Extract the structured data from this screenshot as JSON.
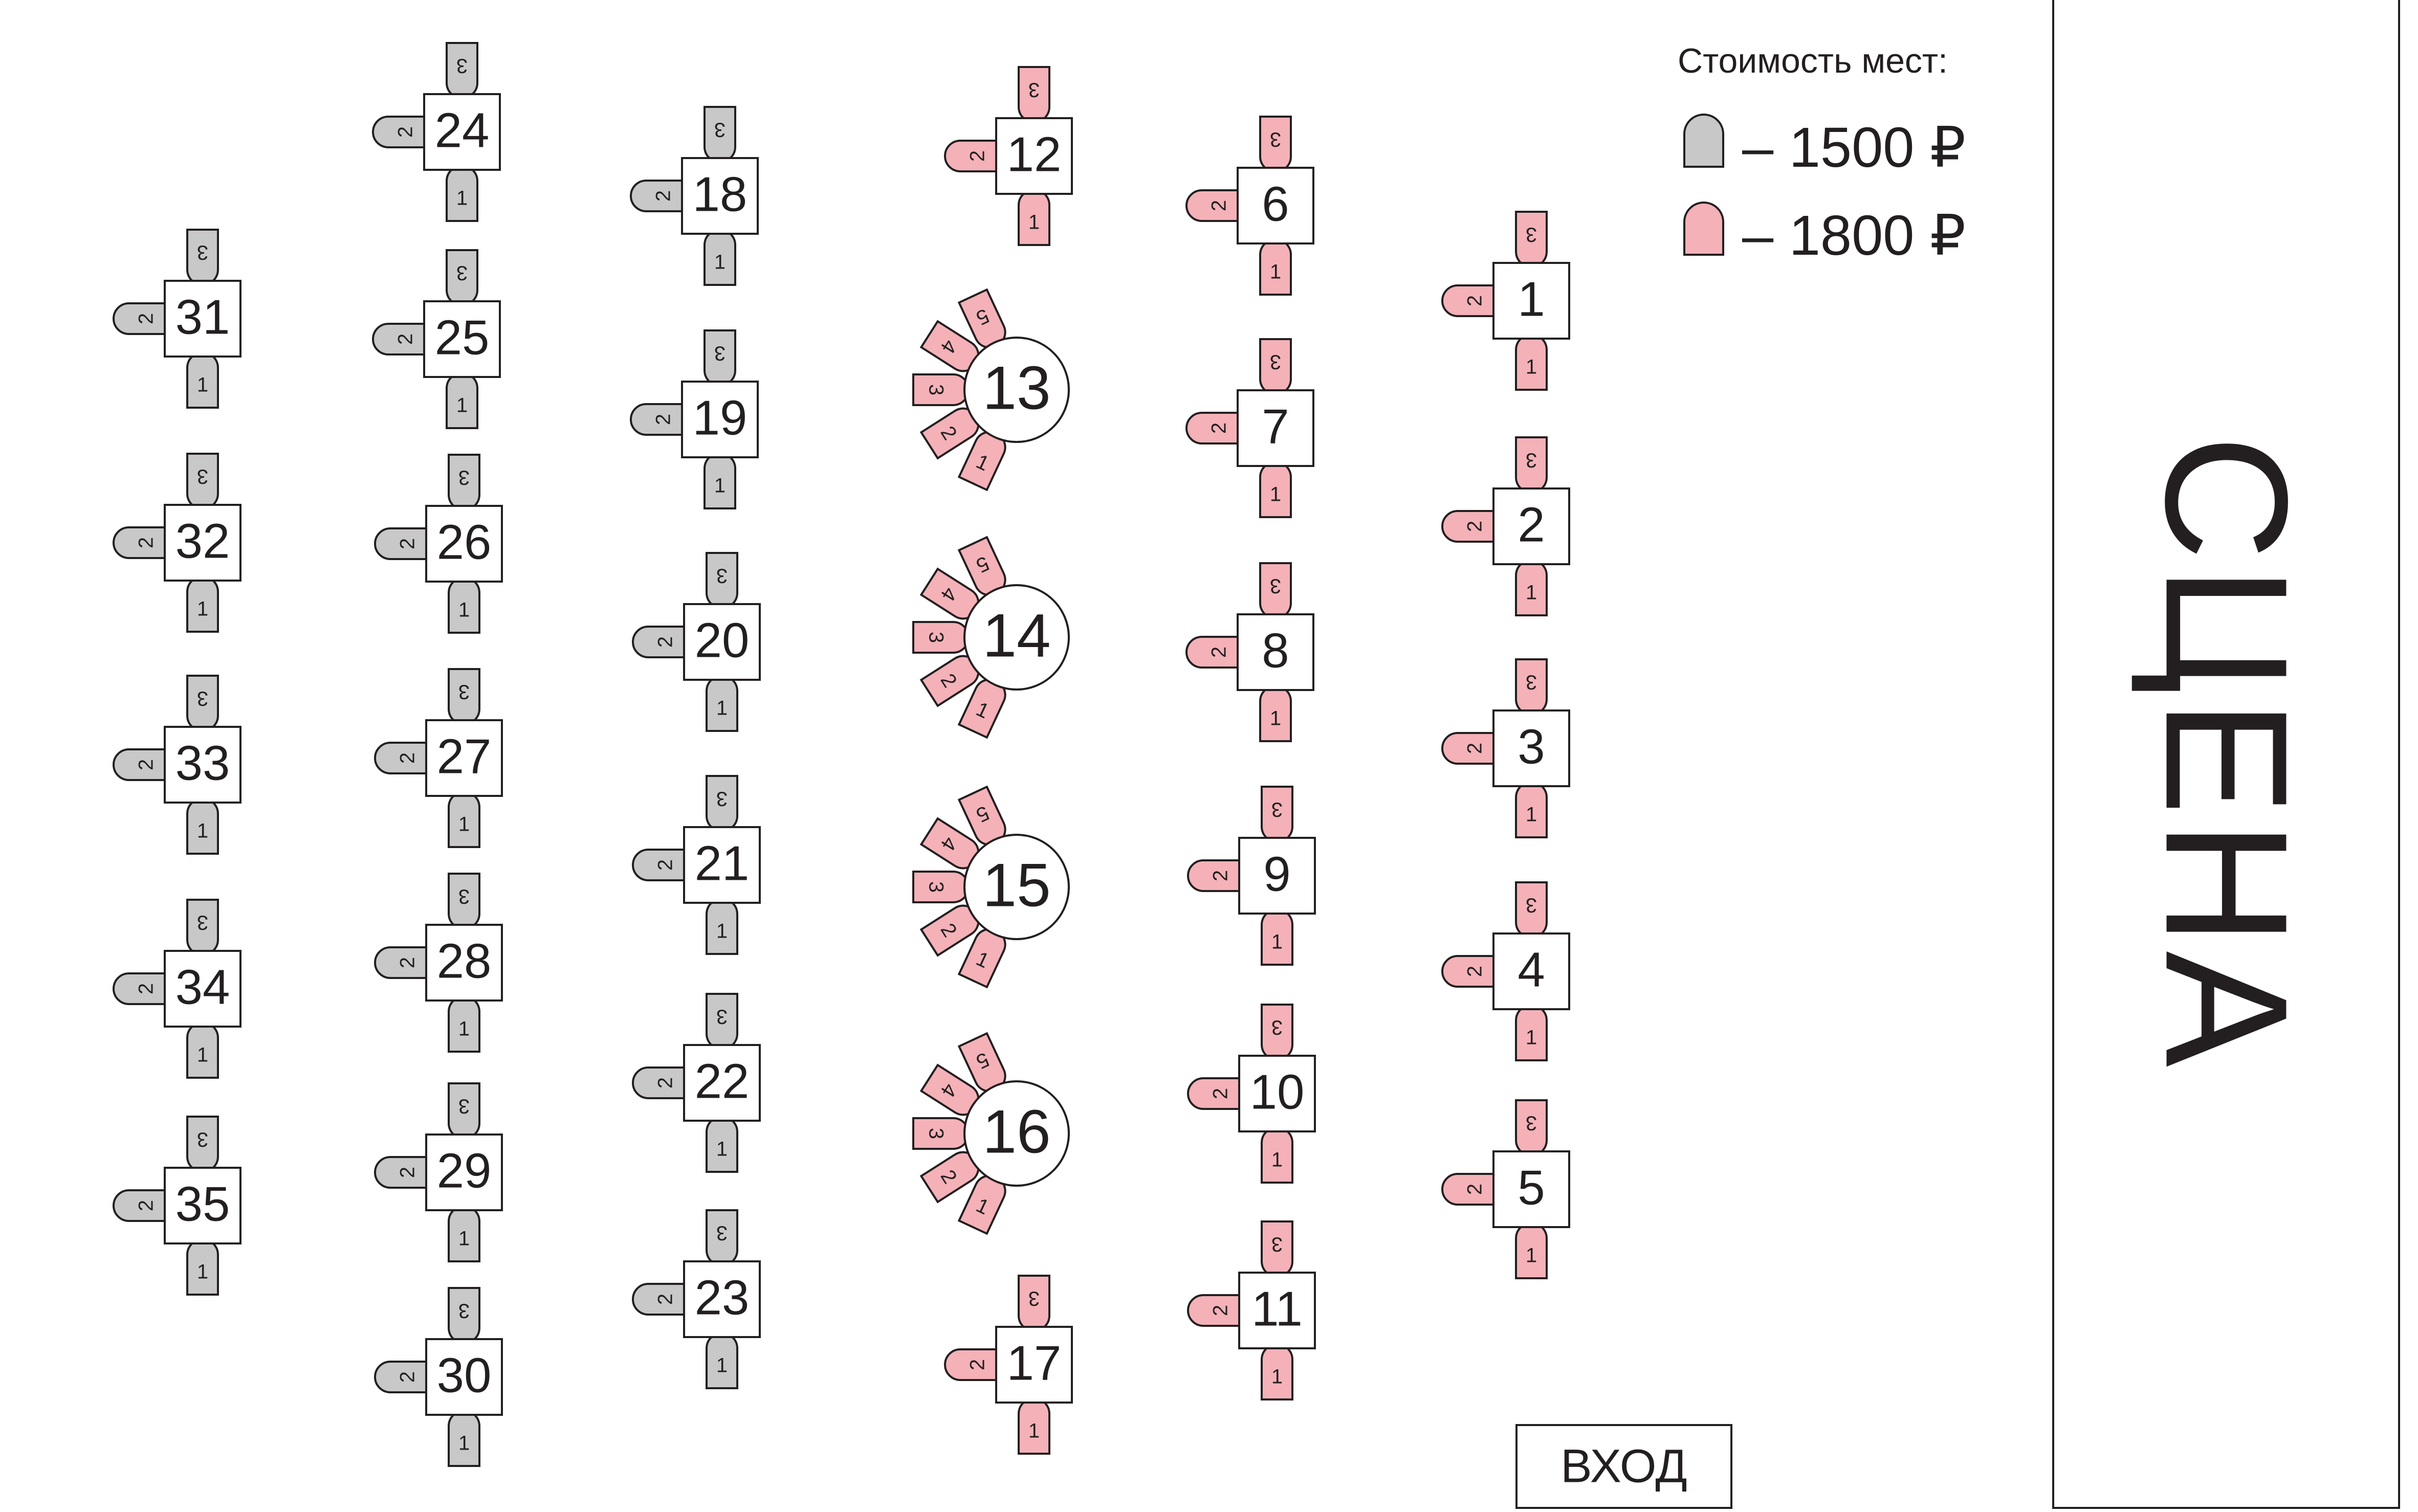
{
  "legend": {
    "title": "Стоимость мест:",
    "items": [
      {
        "label": "– 1500 ₽",
        "color": "#c8c8c8",
        "tier": "standard"
      },
      {
        "label": "– 1800 ₽",
        "color": "#f4b1b8",
        "tier": "premium"
      }
    ]
  },
  "stage_label": "СЦЕНА",
  "entrance_label": "ВХОД",
  "colors": {
    "standard": "#c8c8c8",
    "premium": "#f4b1b8",
    "outline": "#231f20",
    "table": "#ffffff"
  },
  "tables": [
    {
      "number": "1",
      "shape": "square",
      "tier": "premium",
      "seats": [
        "1",
        "2",
        "3"
      ]
    },
    {
      "number": "2",
      "shape": "square",
      "tier": "premium",
      "seats": [
        "1",
        "2",
        "3"
      ]
    },
    {
      "number": "3",
      "shape": "square",
      "tier": "premium",
      "seats": [
        "1",
        "2",
        "3"
      ]
    },
    {
      "number": "4",
      "shape": "square",
      "tier": "premium",
      "seats": [
        "1",
        "2",
        "3"
      ]
    },
    {
      "number": "5",
      "shape": "square",
      "tier": "premium",
      "seats": [
        "1",
        "2",
        "3"
      ]
    },
    {
      "number": "6",
      "shape": "square",
      "tier": "premium",
      "seats": [
        "1",
        "2",
        "3"
      ]
    },
    {
      "number": "7",
      "shape": "square",
      "tier": "premium",
      "seats": [
        "1",
        "2",
        "3"
      ]
    },
    {
      "number": "8",
      "shape": "square",
      "tier": "premium",
      "seats": [
        "1",
        "2",
        "3"
      ]
    },
    {
      "number": "9",
      "shape": "square",
      "tier": "premium",
      "seats": [
        "1",
        "2",
        "3"
      ]
    },
    {
      "number": "10",
      "shape": "square",
      "tier": "premium",
      "seats": [
        "1",
        "2",
        "3"
      ]
    },
    {
      "number": "11",
      "shape": "square",
      "tier": "premium",
      "seats": [
        "1",
        "2",
        "3"
      ]
    },
    {
      "number": "12",
      "shape": "square",
      "tier": "premium",
      "seats": [
        "1",
        "2",
        "3"
      ]
    },
    {
      "number": "13",
      "shape": "round",
      "tier": "premium",
      "seats": [
        "1",
        "2",
        "3",
        "4",
        "5"
      ]
    },
    {
      "number": "14",
      "shape": "round",
      "tier": "premium",
      "seats": [
        "1",
        "2",
        "3",
        "4",
        "5"
      ]
    },
    {
      "number": "15",
      "shape": "round",
      "tier": "premium",
      "seats": [
        "1",
        "2",
        "3",
        "4",
        "5"
      ]
    },
    {
      "number": "16",
      "shape": "round",
      "tier": "premium",
      "seats": [
        "1",
        "2",
        "3",
        "4",
        "5"
      ]
    },
    {
      "number": "17",
      "shape": "square",
      "tier": "premium",
      "seats": [
        "1",
        "2",
        "3"
      ]
    },
    {
      "number": "18",
      "shape": "square",
      "tier": "standard",
      "seats": [
        "1",
        "2",
        "3"
      ]
    },
    {
      "number": "19",
      "shape": "square",
      "tier": "standard",
      "seats": [
        "1",
        "2",
        "3"
      ]
    },
    {
      "number": "20",
      "shape": "square",
      "tier": "standard",
      "seats": [
        "1",
        "2",
        "3"
      ]
    },
    {
      "number": "21",
      "shape": "square",
      "tier": "standard",
      "seats": [
        "1",
        "2",
        "3"
      ]
    },
    {
      "number": "22",
      "shape": "square",
      "tier": "standard",
      "seats": [
        "1",
        "2",
        "3"
      ]
    },
    {
      "number": "23",
      "shape": "square",
      "tier": "standard",
      "seats": [
        "1",
        "2",
        "3"
      ]
    },
    {
      "number": "24",
      "shape": "square",
      "tier": "standard",
      "seats": [
        "1",
        "2",
        "3"
      ]
    },
    {
      "number": "25",
      "shape": "square",
      "tier": "standard",
      "seats": [
        "1",
        "2",
        "3"
      ]
    },
    {
      "number": "26",
      "shape": "square",
      "tier": "standard",
      "seats": [
        "1",
        "2",
        "3"
      ]
    },
    {
      "number": "27",
      "shape": "square",
      "tier": "standard",
      "seats": [
        "1",
        "2",
        "3"
      ]
    },
    {
      "number": "28",
      "shape": "square",
      "tier": "standard",
      "seats": [
        "1",
        "2",
        "3"
      ]
    },
    {
      "number": "29",
      "shape": "square",
      "tier": "standard",
      "seats": [
        "1",
        "2",
        "3"
      ]
    },
    {
      "number": "30",
      "shape": "square",
      "tier": "standard",
      "seats": [
        "1",
        "2",
        "3"
      ]
    },
    {
      "number": "31",
      "shape": "square",
      "tier": "standard",
      "seats": [
        "1",
        "2",
        "3"
      ]
    },
    {
      "number": "32",
      "shape": "square",
      "tier": "standard",
      "seats": [
        "1",
        "2",
        "3"
      ]
    },
    {
      "number": "33",
      "shape": "square",
      "tier": "standard",
      "seats": [
        "1",
        "2",
        "3"
      ]
    },
    {
      "number": "34",
      "shape": "square",
      "tier": "standard",
      "seats": [
        "1",
        "2",
        "3"
      ]
    },
    {
      "number": "35",
      "shape": "square",
      "tier": "standard",
      "seats": [
        "1",
        "2",
        "3"
      ]
    }
  ]
}
